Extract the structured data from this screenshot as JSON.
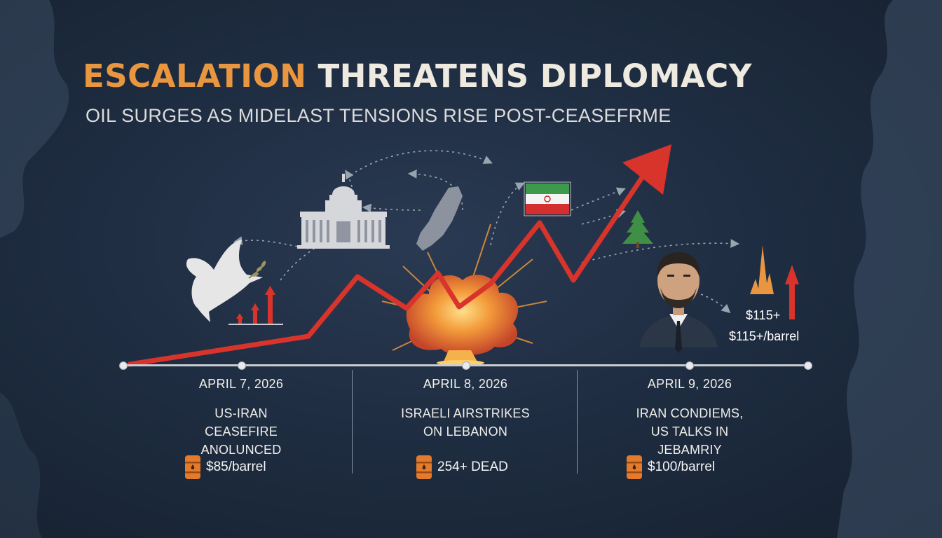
{
  "header": {
    "title_accent": "ESCALATION",
    "title_rest": "THREATENS DIPLOMACY",
    "subtitle": "OIL SURGES AS MIDELAST TENSIONS RISE POST-CEASEFRME"
  },
  "right_callout": {
    "price_short": "$115+",
    "price_full": "$115+/barrel"
  },
  "timeline": [
    {
      "date": "APRIL 7, 2026",
      "event": "US-IRAN\nCEASEFIRE\nANOLUNCED",
      "stat": "$85/barrel",
      "stat_icon": "oil-barrel-icon"
    },
    {
      "date": "APRIL 8, 2026",
      "event": "ISRAELI AIRSTRIKES\nON LEBANON",
      "stat": "254+ DEAD",
      "stat_icon": "oil-barrel-icon"
    },
    {
      "date": "APRIL 9, 2026",
      "event": "IRAN CONDIEMS,\nUS TALKS IN\nJEBAMRIY",
      "stat": "$100/barrel",
      "stat_icon": "oil-barrel-icon"
    }
  ],
  "colors": {
    "accent_orange": "#e8963f",
    "trend_red": "#d9342b",
    "background": "#1f2d42"
  }
}
